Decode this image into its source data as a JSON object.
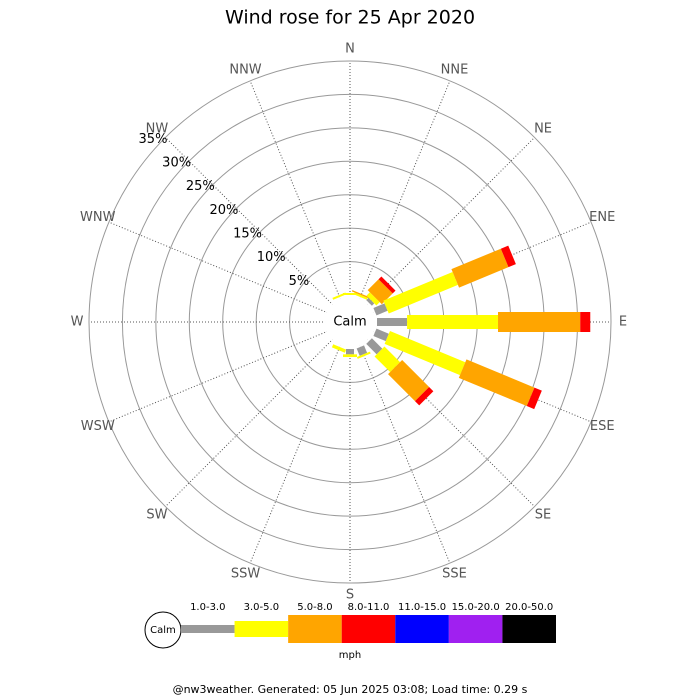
{
  "chart_data": {
    "type": "windrose",
    "title": "Wind rose for 25 Apr 2020",
    "categories": [
      "N",
      "NNE",
      "NE",
      "ENE",
      "E",
      "ESE",
      "SE",
      "SSE",
      "S",
      "SSW",
      "SW",
      "WSW",
      "W",
      "WNW",
      "NW",
      "NNW"
    ],
    "center_label": "Calm",
    "legend_title": "mph",
    "footer": "@nw3weather. Generated: 05 Jun 2025 03:08; Load time: 0.29 s",
    "ylim": [
      0,
      35
    ],
    "yticks": [
      {
        "value": 5,
        "label": "5%"
      },
      {
        "value": 10,
        "label": "10%"
      },
      {
        "value": 15,
        "label": "15%"
      },
      {
        "value": 20,
        "label": "20%"
      },
      {
        "value": 25,
        "label": "25%"
      },
      {
        "value": 30,
        "label": "30%"
      },
      {
        "value": 35,
        "label": "35%"
      }
    ],
    "series": [
      {
        "name": "1.0-3.0",
        "color": "#999999",
        "values": [
          0,
          0,
          0.5,
          1.8,
          4.5,
          2,
          2.2,
          1.2,
          0.8,
          0,
          0,
          0,
          0,
          0,
          0,
          0
        ]
      },
      {
        "name": "3.0-5.0",
        "color": "#ffff00",
        "values": [
          0.3,
          0.3,
          0.7,
          11.2,
          13.6,
          12.2,
          3.3,
          0.3,
          0.4,
          0.5,
          0,
          0,
          0,
          0,
          0,
          0.3
        ]
      },
      {
        "name": "5.0-8.0",
        "color": "#ffa500",
        "values": [
          0,
          0.2,
          2.3,
          8,
          12.3,
          11,
          5.7,
          0,
          0,
          0,
          0,
          0,
          0,
          0,
          0,
          0
        ]
      },
      {
        "name": "8.0-11.0",
        "color": "#ff0000",
        "values": [
          0,
          0,
          0.6,
          1.2,
          1.5,
          1.2,
          0.9,
          0,
          0,
          0,
          0,
          0,
          0,
          0,
          0,
          0
        ]
      },
      {
        "name": "11.0-15.0",
        "color": "#0000ff",
        "values": [
          0,
          0,
          0,
          0,
          0,
          0,
          0,
          0,
          0,
          0,
          0,
          0,
          0,
          0,
          0,
          0
        ]
      },
      {
        "name": "15.0-20.0",
        "color": "#a020f0",
        "values": [
          0,
          0,
          0,
          0,
          0,
          0,
          0,
          0,
          0,
          0,
          0,
          0,
          0,
          0,
          0,
          0
        ]
      },
      {
        "name": "20.0-50.0",
        "color": "#000000",
        "values": [
          0,
          0,
          0,
          0,
          0,
          0,
          0,
          0,
          0,
          0,
          0,
          0,
          0,
          0,
          0,
          0
        ]
      }
    ]
  }
}
